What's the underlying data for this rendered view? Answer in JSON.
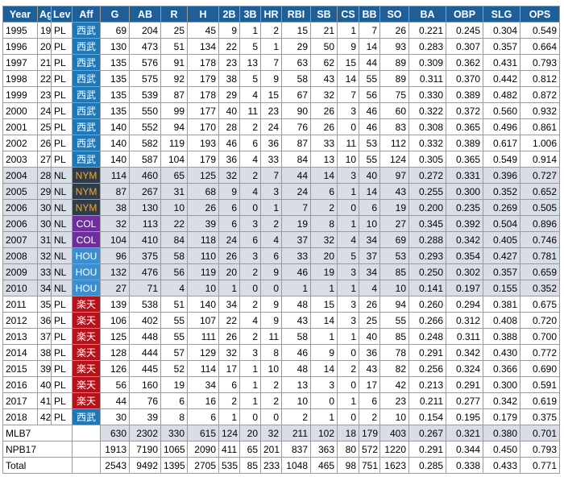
{
  "headers": [
    "Year",
    "Age",
    "Lev",
    "Aff",
    "G",
    "AB",
    "R",
    "H",
    "2B",
    "3B",
    "HR",
    "RBI",
    "SB",
    "CS",
    "BB",
    "SO",
    "BA",
    "OBP",
    "SLG",
    "OPS"
  ],
  "rows": [
    {
      "league": "npb",
      "aff_code": "seibu",
      "cells": [
        "1995",
        "19",
        "PL",
        "西武",
        "69",
        "204",
        "25",
        "45",
        "9",
        "1",
        "2",
        "15",
        "21",
        "1",
        "7",
        "26",
        "0.221",
        "0.245",
        "0.304",
        "0.549"
      ]
    },
    {
      "league": "npb",
      "aff_code": "seibu",
      "cells": [
        "1996",
        "20",
        "PL",
        "西武",
        "130",
        "473",
        "51",
        "134",
        "22",
        "5",
        "1",
        "29",
        "50",
        "9",
        "14",
        "93",
        "0.283",
        "0.307",
        "0.357",
        "0.664"
      ]
    },
    {
      "league": "npb",
      "aff_code": "seibu",
      "cells": [
        "1997",
        "21",
        "PL",
        "西武",
        "135",
        "576",
        "91",
        "178",
        "23",
        "13",
        "7",
        "63",
        "62",
        "15",
        "44",
        "89",
        "0.309",
        "0.362",
        "0.431",
        "0.793"
      ]
    },
    {
      "league": "npb",
      "aff_code": "seibu",
      "cells": [
        "1998",
        "22",
        "PL",
        "西武",
        "135",
        "575",
        "92",
        "179",
        "38",
        "5",
        "9",
        "58",
        "43",
        "14",
        "55",
        "89",
        "0.311",
        "0.370",
        "0.442",
        "0.812"
      ]
    },
    {
      "league": "npb",
      "aff_code": "seibu",
      "cells": [
        "1999",
        "23",
        "PL",
        "西武",
        "135",
        "539",
        "87",
        "178",
        "29",
        "4",
        "15",
        "67",
        "32",
        "7",
        "56",
        "75",
        "0.330",
        "0.389",
        "0.482",
        "0.872"
      ]
    },
    {
      "league": "npb",
      "aff_code": "seibu",
      "cells": [
        "2000",
        "24",
        "PL",
        "西武",
        "135",
        "550",
        "99",
        "177",
        "40",
        "11",
        "23",
        "90",
        "26",
        "3",
        "46",
        "60",
        "0.322",
        "0.372",
        "0.560",
        "0.932"
      ]
    },
    {
      "league": "npb",
      "aff_code": "seibu",
      "cells": [
        "2001",
        "25",
        "PL",
        "西武",
        "140",
        "552",
        "94",
        "170",
        "28",
        "2",
        "24",
        "76",
        "26",
        "0",
        "46",
        "83",
        "0.308",
        "0.365",
        "0.496",
        "0.861"
      ]
    },
    {
      "league": "npb",
      "aff_code": "seibu",
      "cells": [
        "2002",
        "26",
        "PL",
        "西武",
        "140",
        "582",
        "119",
        "193",
        "46",
        "6",
        "36",
        "87",
        "33",
        "11",
        "53",
        "112",
        "0.332",
        "0.389",
        "0.617",
        "1.006"
      ]
    },
    {
      "league": "npb",
      "aff_code": "seibu",
      "cells": [
        "2003",
        "27",
        "PL",
        "西武",
        "140",
        "587",
        "104",
        "179",
        "36",
        "4",
        "33",
        "84",
        "13",
        "10",
        "55",
        "124",
        "0.305",
        "0.365",
        "0.549",
        "0.914"
      ]
    },
    {
      "league": "mlb",
      "aff_code": "nym",
      "cells": [
        "2004",
        "28",
        "NL",
        "NYM",
        "114",
        "460",
        "65",
        "125",
        "32",
        "2",
        "7",
        "44",
        "14",
        "3",
        "40",
        "97",
        "0.272",
        "0.331",
        "0.396",
        "0.727"
      ]
    },
    {
      "league": "mlb",
      "aff_code": "nym",
      "cells": [
        "2005",
        "29",
        "NL",
        "NYM",
        "87",
        "267",
        "31",
        "68",
        "9",
        "4",
        "3",
        "24",
        "6",
        "1",
        "14",
        "43",
        "0.255",
        "0.300",
        "0.352",
        "0.652"
      ]
    },
    {
      "league": "mlb",
      "aff_code": "nym",
      "cells": [
        "2006",
        "30",
        "NL",
        "NYM",
        "38",
        "130",
        "10",
        "26",
        "6",
        "0",
        "1",
        "7",
        "2",
        "0",
        "6",
        "19",
        "0.200",
        "0.235",
        "0.269",
        "0.505"
      ]
    },
    {
      "league": "mlb",
      "aff_code": "col",
      "cells": [
        "2006",
        "30",
        "NL",
        "COL",
        "32",
        "113",
        "22",
        "39",
        "6",
        "3",
        "2",
        "19",
        "8",
        "1",
        "10",
        "27",
        "0.345",
        "0.392",
        "0.504",
        "0.896"
      ]
    },
    {
      "league": "mlb",
      "aff_code": "col",
      "cells": [
        "2007",
        "31",
        "NL",
        "COL",
        "104",
        "410",
        "84",
        "118",
        "24",
        "6",
        "4",
        "37",
        "32",
        "4",
        "34",
        "69",
        "0.288",
        "0.342",
        "0.405",
        "0.746"
      ]
    },
    {
      "league": "mlb",
      "aff_code": "hou",
      "cells": [
        "2008",
        "32",
        "NL",
        "HOU",
        "96",
        "375",
        "58",
        "110",
        "26",
        "3",
        "6",
        "33",
        "20",
        "5",
        "37",
        "53",
        "0.293",
        "0.354",
        "0.427",
        "0.781"
      ]
    },
    {
      "league": "mlb",
      "aff_code": "hou",
      "cells": [
        "2009",
        "33",
        "NL",
        "HOU",
        "132",
        "476",
        "56",
        "119",
        "20",
        "2",
        "9",
        "46",
        "19",
        "3",
        "34",
        "85",
        "0.250",
        "0.302",
        "0.357",
        "0.659"
      ]
    },
    {
      "league": "mlb",
      "aff_code": "hou",
      "cells": [
        "2010",
        "34",
        "NL",
        "HOU",
        "27",
        "71",
        "4",
        "10",
        "1",
        "0",
        "0",
        "1",
        "1",
        "1",
        "4",
        "10",
        "0.141",
        "0.197",
        "0.155",
        "0.352"
      ]
    },
    {
      "league": "npb",
      "aff_code": "rakuten",
      "cells": [
        "2011",
        "35",
        "PL",
        "楽天",
        "139",
        "538",
        "51",
        "140",
        "34",
        "2",
        "9",
        "48",
        "15",
        "3",
        "26",
        "94",
        "0.260",
        "0.294",
        "0.381",
        "0.675"
      ]
    },
    {
      "league": "npb",
      "aff_code": "rakuten",
      "cells": [
        "2012",
        "36",
        "PL",
        "楽天",
        "106",
        "402",
        "55",
        "107",
        "22",
        "4",
        "9",
        "43",
        "14",
        "3",
        "25",
        "55",
        "0.266",
        "0.312",
        "0.408",
        "0.720"
      ]
    },
    {
      "league": "npb",
      "aff_code": "rakuten",
      "cells": [
        "2013",
        "37",
        "PL",
        "楽天",
        "125",
        "448",
        "55",
        "111",
        "26",
        "2",
        "11",
        "58",
        "1",
        "1",
        "40",
        "85",
        "0.248",
        "0.311",
        "0.388",
        "0.700"
      ]
    },
    {
      "league": "npb",
      "aff_code": "rakuten",
      "cells": [
        "2014",
        "38",
        "PL",
        "楽天",
        "128",
        "444",
        "57",
        "129",
        "32",
        "3",
        "8",
        "46",
        "9",
        "0",
        "36",
        "78",
        "0.291",
        "0.342",
        "0.430",
        "0.772"
      ]
    },
    {
      "league": "npb",
      "aff_code": "rakuten",
      "cells": [
        "2015",
        "39",
        "PL",
        "楽天",
        "126",
        "445",
        "52",
        "114",
        "17",
        "1",
        "10",
        "48",
        "14",
        "2",
        "43",
        "82",
        "0.256",
        "0.324",
        "0.366",
        "0.690"
      ]
    },
    {
      "league": "npb",
      "aff_code": "rakuten",
      "cells": [
        "2016",
        "40",
        "PL",
        "楽天",
        "56",
        "160",
        "19",
        "34",
        "6",
        "1",
        "2",
        "13",
        "3",
        "0",
        "17",
        "42",
        "0.213",
        "0.291",
        "0.300",
        "0.591"
      ]
    },
    {
      "league": "npb",
      "aff_code": "rakuten",
      "cells": [
        "2017",
        "41",
        "PL",
        "楽天",
        "44",
        "76",
        "6",
        "16",
        "2",
        "1",
        "2",
        "10",
        "0",
        "1",
        "6",
        "23",
        "0.211",
        "0.277",
        "0.342",
        "0.619"
      ]
    },
    {
      "league": "npb",
      "aff_code": "seibu",
      "cells": [
        "2018",
        "42",
        "PL",
        "西武",
        "30",
        "39",
        "8",
        "6",
        "1",
        "0",
        "0",
        "2",
        "1",
        "0",
        "2",
        "10",
        "0.154",
        "0.195",
        "0.179",
        "0.375"
      ]
    }
  ],
  "totals": [
    {
      "label": "MLB7",
      "kind": "mlb",
      "cells": [
        "630",
        "2302",
        "330",
        "615",
        "124",
        "20",
        "32",
        "211",
        "102",
        "18",
        "179",
        "403",
        "0.267",
        "0.321",
        "0.380",
        "0.701"
      ]
    },
    {
      "label": "NPB17",
      "kind": "npb",
      "cells": [
        "1913",
        "7190",
        "1065",
        "2090",
        "411",
        "65",
        "201",
        "837",
        "363",
        "80",
        "572",
        "1220",
        "0.291",
        "0.344",
        "0.450",
        "0.793"
      ]
    },
    {
      "label": "Total",
      "kind": "total",
      "cells": [
        "2543",
        "9492",
        "1395",
        "2705",
        "535",
        "85",
        "233",
        "1048",
        "465",
        "98",
        "751",
        "1623",
        "0.285",
        "0.338",
        "0.433",
        "0.771"
      ]
    }
  ],
  "colors": {
    "header_bg": "#1f5f97",
    "mlb_row_bg": "#d9dee6",
    "seibu": "#1e78b7",
    "nym": "#2f3c4c",
    "nym_text": "#f5a623",
    "col": "#6c2f9c",
    "hou": "#3b8fd1",
    "rakuten": "#b5121b"
  }
}
